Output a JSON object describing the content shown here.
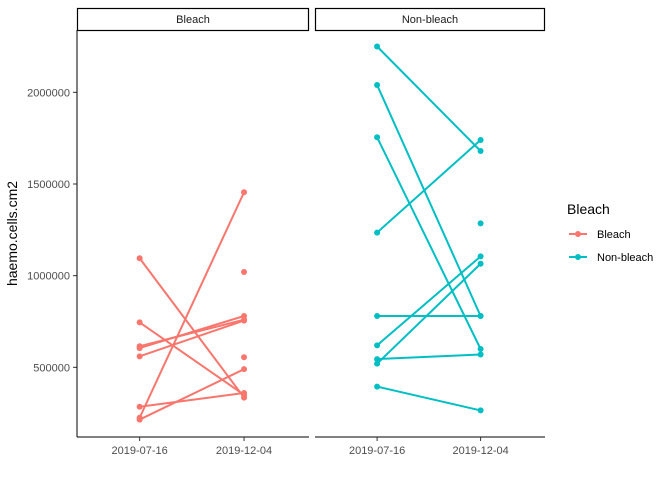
{
  "chart_data": {
    "type": "line",
    "ylabel": "haemo.cells.cm2",
    "ylim": [
      120000,
      2340000
    ],
    "y_ticks": [
      500000,
      1000000,
      1500000,
      2000000
    ],
    "y_tick_labels": [
      "500000",
      "1000000",
      "1500000",
      "2000000"
    ],
    "x_categories": [
      "2019-07-16",
      "2019-12-04"
    ],
    "legend": {
      "title": "Bleach",
      "position": "right",
      "items": [
        {
          "label": "Bleach",
          "color": "#F8766D"
        },
        {
          "label": "Non-bleach",
          "color": "#00BFC4"
        }
      ]
    },
    "panels": [
      {
        "strip": "Bleach",
        "color": "#F8766D",
        "pairs": [
          [
            1095000,
            335000
          ],
          [
            745000,
            350000
          ],
          [
            615000,
            760000
          ],
          [
            605000,
            780000
          ],
          [
            560000,
            755000
          ],
          [
            285000,
            360000
          ],
          [
            225000,
            1455000
          ],
          [
            215000,
            490000
          ]
        ],
        "points_2019-12-04_only": [
          1020000,
          555000
        ]
      },
      {
        "strip": "Non-bleach",
        "color": "#00BFC4",
        "pairs": [
          [
            2250000,
            1680000
          ],
          [
            2040000,
            780000
          ],
          [
            1755000,
            600000
          ],
          [
            1235000,
            1740000
          ],
          [
            780000,
            780000
          ],
          [
            620000,
            1105000
          ],
          [
            545000,
            570000
          ],
          [
            520000,
            1065000
          ],
          [
            395000,
            265000
          ]
        ],
        "points_2019-12-04_only": [
          1285000
        ]
      }
    ]
  }
}
